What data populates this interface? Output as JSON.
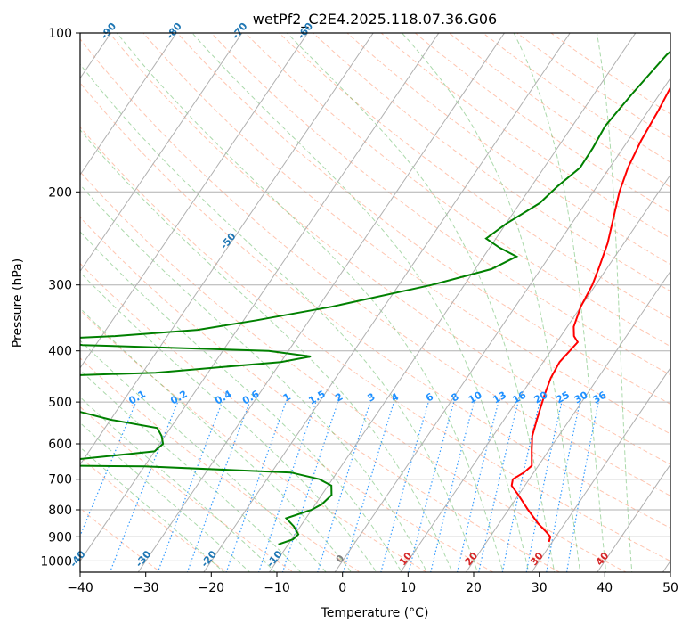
{
  "chart_data": {
    "type": "line",
    "subtype": "skew-t log-p diagram",
    "title": "wetPf2_C2E4.2025.118.07.36.G06",
    "xlabel": "Temperature (°C)",
    "ylabel": "Pressure (hPa)",
    "xlim": [
      -40,
      50
    ],
    "ylim": [
      1050,
      100
    ],
    "y_scale": "log",
    "grid": true,
    "x_ticks": [
      "−40",
      "−30",
      "−20",
      "−10",
      "0",
      "10",
      "20",
      "30",
      "40",
      "50"
    ],
    "y_ticks": [
      "100",
      "200",
      "300",
      "400",
      "500",
      "600",
      "700",
      "800",
      "900",
      "1000"
    ],
    "mixing_ratio_labels": [
      "0.1",
      "0.2",
      "0.4",
      "0.6",
      "1",
      "1.5",
      "2",
      "3",
      "4",
      "6",
      "8",
      "10",
      "13",
      "16",
      "20",
      "25",
      "30",
      "36"
    ],
    "skewed_isotherm_labels": [
      "-100",
      "-90",
      "-80",
      "-70",
      "-60",
      "-50",
      "-40",
      "-30",
      "-20",
      "-10",
      "0",
      "10",
      "20",
      "30",
      "40"
    ],
    "colors": {
      "temperature": "#ff0000",
      "dewpoint": "#008000",
      "dry_adiabat": "#ff7f50",
      "moist_adiabat": "#2ca02c",
      "mixing_ratio": "#1e90ff",
      "isotherm_label_cold": "#1f77b4",
      "isotherm_label_zero": "#7f7f7f",
      "isotherm_label_warm": "#d62728",
      "grid": "#b0b0b0"
    },
    "series": [
      {
        "name": "Temperature",
        "points": [
          [
            100,
            1.7
          ],
          [
            110,
            0.5
          ],
          [
            125,
            0.9
          ],
          [
            140,
            1.5
          ],
          [
            160,
            2.0
          ],
          [
            180,
            2.8
          ],
          [
            200,
            4.0
          ],
          [
            220,
            5.5
          ],
          [
            250,
            7.5
          ],
          [
            280,
            8.8
          ],
          [
            300,
            9.5
          ],
          [
            330,
            10.0
          ],
          [
            360,
            11.0
          ],
          [
            375,
            12.0
          ],
          [
            385,
            13.2
          ],
          [
            395,
            13.0
          ],
          [
            420,
            12.5
          ],
          [
            450,
            12.8
          ],
          [
            480,
            13.5
          ],
          [
            500,
            14.0
          ],
          [
            540,
            15.0
          ],
          [
            580,
            16.0
          ],
          [
            620,
            17.5
          ],
          [
            660,
            19.0
          ],
          [
            680,
            18.5
          ],
          [
            700,
            17.5
          ],
          [
            720,
            18.0
          ],
          [
            750,
            20.0
          ],
          [
            800,
            23.0
          ],
          [
            850,
            26.0
          ],
          [
            880,
            28.0
          ],
          [
            900,
            29.2
          ],
          [
            920,
            29.5
          ]
        ]
      },
      {
        "name": "Dewpoint",
        "points": [
          [
            100,
            -1.5
          ],
          [
            110,
            -3.0
          ],
          [
            130,
            -4.2
          ],
          [
            150,
            -5.0
          ],
          [
            165,
            -4.6
          ],
          [
            180,
            -4.5
          ],
          [
            195,
            -6.0
          ],
          [
            210,
            -7.0
          ],
          [
            230,
            -10.0
          ],
          [
            245,
            -11.5
          ],
          [
            255,
            -8.5
          ],
          [
            265,
            -5.0
          ],
          [
            280,
            -7.5
          ],
          [
            300,
            -15.0
          ],
          [
            330,
            -28.0
          ],
          [
            350,
            -38.0
          ],
          [
            365,
            -46.0
          ],
          [
            375,
            -58.0
          ],
          [
            380,
            -68.0
          ],
          [
            390,
            -62.0
          ],
          [
            400,
            -33.0
          ],
          [
            410,
            -26.0
          ],
          [
            420,
            -30.0
          ],
          [
            440,
            -48.0
          ],
          [
            455,
            -84.0
          ],
          [
            490,
            -73.0
          ],
          [
            520,
            -56.0
          ],
          [
            540,
            -50.0
          ],
          [
            560,
            -42.0
          ],
          [
            580,
            -40.5
          ],
          [
            600,
            -39.5
          ],
          [
            620,
            -40.0
          ],
          [
            650,
            -55.0
          ],
          [
            658,
            -63.0
          ],
          [
            662,
            -40.0
          ],
          [
            680,
            -17.0
          ],
          [
            700,
            -12.0
          ],
          [
            720,
            -9.5
          ],
          [
            750,
            -8.5
          ],
          [
            780,
            -9.0
          ],
          [
            800,
            -10.0
          ],
          [
            830,
            -13.0
          ],
          [
            860,
            -11.0
          ],
          [
            890,
            -9.5
          ],
          [
            910,
            -9.8
          ],
          [
            930,
            -11.5
          ]
        ]
      }
    ]
  }
}
